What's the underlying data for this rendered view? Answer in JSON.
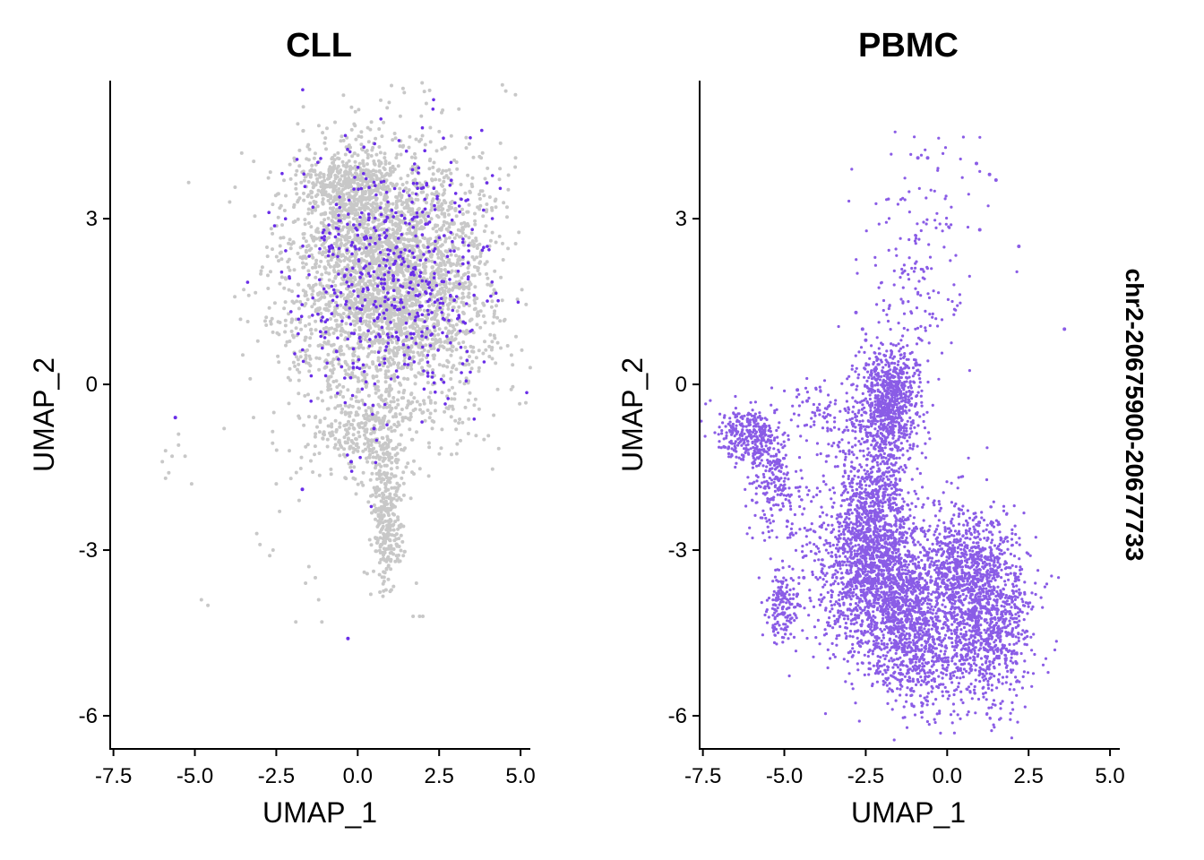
{
  "side_label": "chr2-20675900-20677733",
  "colors": {
    "background_dot": "#c8c8c8",
    "cll_highlight": "#6a2ee8",
    "pbmc_dot": "#8a5ce6"
  },
  "chart_data": [
    {
      "type": "scatter",
      "title": "CLL",
      "xlabel": "UMAP_1",
      "ylabel": "UMAP_2",
      "xlim": [
        -7.6,
        5.3
      ],
      "ylim": [
        -6.6,
        5.5
      ],
      "xticks": [
        -7.5,
        -5.0,
        -2.5,
        0.0,
        2.5,
        5.0
      ],
      "xtick_labels": [
        "-7.5",
        "-5.0",
        "-2.5",
        "0.0",
        "2.5",
        "5.0"
      ],
      "yticks": [
        3,
        0,
        -3,
        -6
      ],
      "ytick_labels": [
        "3",
        "0",
        "-3",
        "-6"
      ],
      "grid": false,
      "series": [
        {
          "color": "#c8c8c8",
          "clusters": [
            {
              "cx": 1.0,
              "cy": 1.9,
              "sx": 1.55,
              "sy": 1.2,
              "n": 3200,
              "r": 2.0
            },
            {
              "cx": -0.3,
              "cy": 3.6,
              "sx": 0.7,
              "sy": 0.35,
              "n": 400,
              "r": 2.0
            },
            {
              "cx": 0.9,
              "cy": -2.3,
              "sx": 0.22,
              "sy": 0.7,
              "n": 320,
              "r": 2.0
            },
            {
              "cx": 0.2,
              "cy": -0.9,
              "sx": 0.9,
              "sy": 0.45,
              "n": 280,
              "r": 2.0
            }
          ],
          "points": [
            [
              -5.9,
              -1.2
            ],
            [
              -5.8,
              -1.6
            ],
            [
              -6.0,
              -1.4
            ],
            [
              -5.7,
              -1.3
            ],
            [
              -5.5,
              -1.1
            ],
            [
              -5.3,
              -1.3
            ],
            [
              -5.5,
              -0.9
            ],
            [
              -5.9,
              -1.7
            ],
            [
              -5.1,
              -1.8
            ],
            [
              -4.8,
              -3.9
            ],
            [
              -4.6,
              -4.0
            ],
            [
              -4.1,
              -0.8
            ],
            [
              -3.2,
              -0.6
            ],
            [
              -3.1,
              -2.7
            ],
            [
              -3.0,
              -2.9
            ],
            [
              -2.6,
              -3.0
            ],
            [
              -2.7,
              -3.1
            ],
            [
              -2.5,
              -1.8
            ],
            [
              -2.4,
              -2.3
            ],
            [
              -2.1,
              -1.2
            ],
            [
              -1.8,
              -2.1
            ],
            [
              -1.5,
              -3.3
            ],
            [
              -1.3,
              -3.5
            ],
            [
              -1.2,
              -3.9
            ],
            [
              -1.1,
              -4.3
            ],
            [
              -3.3,
              0.1
            ],
            [
              -1.6,
              -3.6
            ],
            [
              -1.9,
              -4.3
            ],
            [
              -1.3,
              -0.6
            ],
            [
              1.3,
              -3.2
            ],
            [
              1.4,
              -3.1
            ],
            [
              1.7,
              -4.2
            ],
            [
              1.9,
              -4.2
            ],
            [
              2.0,
              -4.2
            ],
            [
              1.8,
              -3.6
            ],
            [
              0.2,
              -3.4
            ],
            [
              0.4,
              -3.8
            ]
          ]
        },
        {
          "color": "#6a2ee8",
          "clusters": [
            {
              "cx": 1.0,
              "cy": 1.9,
              "sx": 1.5,
              "sy": 1.15,
              "n": 560,
              "r": 1.8
            }
          ],
          "points": [
            [
              -5.6,
              -0.6
            ],
            [
              -1.7,
              -1.9
            ],
            [
              -0.3,
              -4.6
            ],
            [
              -0.2,
              -1.4
            ],
            [
              0.5,
              -0.8
            ]
          ]
        }
      ]
    },
    {
      "type": "scatter",
      "title": "PBMC",
      "xlabel": "UMAP_1",
      "ylabel": "UMAP_2",
      "xlim": [
        -7.6,
        5.3
      ],
      "ylim": [
        -6.6,
        5.5
      ],
      "xticks": [
        -7.5,
        -5.0,
        -2.5,
        0.0,
        2.5,
        5.0
      ],
      "xtick_labels": [
        "-7.5",
        "-5.0",
        "-2.5",
        "0.0",
        "2.5",
        "5.0"
      ],
      "yticks": [
        3,
        0,
        -3,
        -6
      ],
      "ytick_labels": [
        "3",
        "0",
        "-3",
        "-6"
      ],
      "grid": false,
      "series": [
        {
          "color": "#8a5ce6",
          "clusters": [
            {
              "cx": -6.2,
              "cy": -0.9,
              "sx": 0.45,
              "sy": 0.25,
              "n": 260,
              "r": 1.6
            },
            {
              "cx": -5.4,
              "cy": -1.6,
              "sx": 0.35,
              "sy": 0.55,
              "n": 220,
              "r": 1.6
            },
            {
              "cx": -5.1,
              "cy": -4.0,
              "sx": 0.25,
              "sy": 0.35,
              "n": 160,
              "r": 1.6
            },
            {
              "cx": -1.8,
              "cy": -0.3,
              "sx": 0.5,
              "sy": 0.5,
              "n": 800,
              "r": 1.6
            },
            {
              "cx": -2.3,
              "cy": -2.4,
              "sx": 0.55,
              "sy": 0.9,
              "n": 900,
              "r": 1.6
            },
            {
              "cx": -2.3,
              "cy": -3.5,
              "sx": 0.9,
              "sy": 0.7,
              "n": 1200,
              "r": 1.6
            },
            {
              "cx": -1.0,
              "cy": -4.5,
              "sx": 0.7,
              "sy": 0.7,
              "n": 900,
              "r": 1.6
            },
            {
              "cx": 1.2,
              "cy": -4.2,
              "sx": 0.7,
              "sy": 0.8,
              "n": 1100,
              "r": 1.6
            },
            {
              "cx": 0.4,
              "cy": -3.2,
              "sx": 0.6,
              "sy": 0.5,
              "n": 500,
              "r": 1.6
            },
            {
              "cx": -1.0,
              "cy": 1.8,
              "sx": 1.0,
              "sy": 0.9,
              "n": 110,
              "r": 1.6
            },
            {
              "cx": -0.5,
              "cy": 3.3,
              "sx": 0.9,
              "sy": 0.6,
              "n": 60,
              "r": 1.6
            },
            {
              "cx": -3.8,
              "cy": -0.6,
              "sx": 0.6,
              "sy": 0.4,
              "n": 90,
              "r": 1.6
            },
            {
              "cx": -4.5,
              "cy": -2.3,
              "sx": 0.5,
              "sy": 0.5,
              "n": 70,
              "r": 1.6
            }
          ],
          "points": [
            [
              3.6,
              1.0
            ],
            [
              1.3,
              3.8
            ],
            [
              1.5,
              3.7
            ],
            [
              2.2,
              2.5
            ],
            [
              -0.6,
              4.1
            ],
            [
              -0.9,
              4.1
            ],
            [
              0.9,
              4.0
            ],
            [
              1.0,
              2.8
            ],
            [
              -2.5,
              0.8
            ],
            [
              -2.6,
              1.0
            ],
            [
              -2.8,
              1.3
            ],
            [
              -4.6,
              -0.1
            ],
            [
              -4.3,
              -0.3
            ],
            [
              -4.4,
              -3.5
            ],
            [
              -4.6,
              -3.8
            ]
          ]
        }
      ]
    }
  ]
}
